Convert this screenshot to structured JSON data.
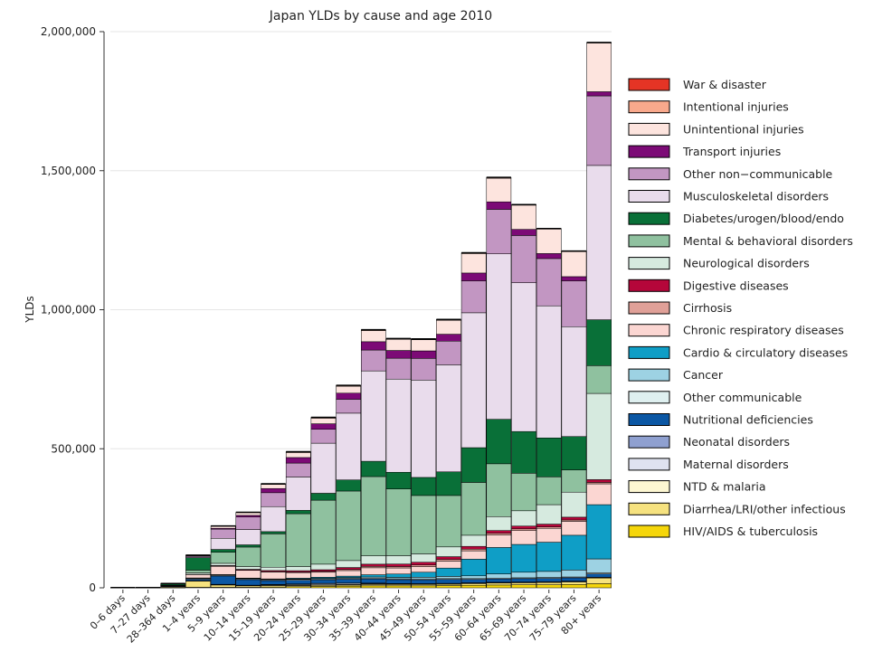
{
  "chart_data": {
    "type": "bar",
    "stacked": true,
    "title": "Japan YLDs by cause and age 2010",
    "xlabel": "",
    "ylabel": "YLDs",
    "ylim": [
      0,
      2000000
    ],
    "yticks": [
      0,
      500000,
      1000000,
      1500000,
      2000000
    ],
    "ytick_labels": [
      "0",
      "500,000",
      "1,000,000",
      "1,500,000",
      "2,000,000"
    ],
    "legend_position": "right",
    "grid": "horizontal",
    "categories": [
      "0–6 days",
      "7–27 days",
      "28–364 days",
      "1–4 years",
      "5–9 years",
      "10–14 years",
      "15–19 years",
      "20–24 years",
      "25–29 years",
      "30–34 years",
      "35–39 years",
      "40–44 years",
      "45–49 years",
      "50–54 years",
      "55–59 years",
      "60–64 years",
      "65–69 years",
      "70–74 years",
      "75–79 years",
      "80+ years"
    ],
    "series": [
      {
        "name": "HIV/AIDS & tuberculosis",
        "color": "#f5d60a",
        "values": [
          0,
          0,
          500,
          2000,
          2000,
          2000,
          3000,
          4000,
          5000,
          6000,
          7000,
          7000,
          7000,
          8000,
          9000,
          10000,
          11000,
          11000,
          12000,
          15000
        ]
      },
      {
        "name": "Diarrhea/LRI/other infectious",
        "color": "#f6e27f",
        "values": [
          300,
          300,
          3000,
          22000,
          8000,
          5000,
          5000,
          4000,
          4000,
          4000,
          5000,
          5000,
          5000,
          5000,
          6000,
          7000,
          7000,
          8000,
          9000,
          20000
        ]
      },
      {
        "name": "NTD & malaria",
        "color": "#fdf7d2",
        "values": [
          0,
          0,
          0,
          1000,
          1500,
          1500,
          2000,
          2000,
          2000,
          2000,
          2000,
          2000,
          2000,
          2000,
          2000,
          2000,
          2000,
          2000,
          2000,
          2000
        ]
      },
      {
        "name": "Maternal disorders",
        "color": "#dfe2f0",
        "values": [
          0,
          0,
          0,
          0,
          0,
          0,
          1000,
          3000,
          4000,
          4000,
          2000,
          500,
          0,
          0,
          0,
          0,
          0,
          0,
          0,
          0
        ]
      },
      {
        "name": "Neonatal disorders",
        "color": "#8fa0d0",
        "values": [
          500,
          500,
          1000,
          1000,
          1000,
          1000,
          1000,
          1000,
          1000,
          1000,
          1000,
          1000,
          1000,
          1000,
          1000,
          1000,
          1000,
          1000,
          1000,
          1000
        ]
      },
      {
        "name": "Nutritional deficiencies",
        "color": "#0b57a4",
        "values": [
          0,
          0,
          2000,
          5000,
          30000,
          20000,
          14000,
          13000,
          13000,
          14000,
          15000,
          14000,
          14000,
          14000,
          12000,
          12000,
          12000,
          12000,
          12000,
          12000
        ]
      },
      {
        "name": "Other communicable",
        "color": "#dff0f0",
        "values": [
          0,
          0,
          500,
          3000,
          3000,
          3000,
          3000,
          3000,
          3000,
          3000,
          3000,
          3000,
          3000,
          3000,
          3000,
          3000,
          3000,
          3000,
          3000,
          4000
        ]
      },
      {
        "name": "Cancer",
        "color": "#9dd2e3",
        "values": [
          0,
          0,
          0,
          1000,
          1000,
          1000,
          1000,
          1500,
          2000,
          3000,
          4000,
          5000,
          6000,
          8000,
          10000,
          15000,
          20000,
          22000,
          25000,
          50000
        ]
      },
      {
        "name": "Cardio & circulatory diseases",
        "color": "#0f9ec6",
        "values": [
          0,
          0,
          0,
          500,
          1000,
          1500,
          2000,
          3000,
          4000,
          5000,
          8000,
          12000,
          18000,
          30000,
          60000,
          95000,
          100000,
          105000,
          125000,
          195000
        ]
      },
      {
        "name": "Chronic respiratory diseases",
        "color": "#fbd6d2",
        "values": [
          0,
          0,
          1000,
          12000,
          30000,
          28000,
          25000,
          20000,
          18000,
          20000,
          25000,
          22000,
          20000,
          25000,
          30000,
          45000,
          50000,
          50000,
          50000,
          75000
        ]
      },
      {
        "name": "Cirrhosis",
        "color": "#e0a098",
        "values": [
          0,
          0,
          0,
          0,
          500,
          500,
          1000,
          2000,
          3000,
          4000,
          5000,
          5000,
          6000,
          6000,
          6000,
          6000,
          6000,
          5000,
          5000,
          5000
        ]
      },
      {
        "name": "Digestive diseases",
        "color": "#b5063a",
        "values": [
          0,
          0,
          0,
          1000,
          2000,
          3000,
          4000,
          5000,
          6000,
          7000,
          8000,
          9000,
          10000,
          10000,
          10000,
          10000,
          10000,
          10000,
          10000,
          10000
        ]
      },
      {
        "name": "Neurological disorders",
        "color": "#d6eadf",
        "values": [
          0,
          0,
          1000,
          5000,
          8000,
          10000,
          12000,
          15000,
          20000,
          25000,
          30000,
          30000,
          30000,
          35000,
          40000,
          50000,
          55000,
          70000,
          90000,
          310000
        ]
      },
      {
        "name": "Mental & behavioral disorders",
        "color": "#8fc19f",
        "values": [
          0,
          0,
          1000,
          10000,
          40000,
          70000,
          120000,
          190000,
          230000,
          250000,
          285000,
          240000,
          210000,
          185000,
          190000,
          190000,
          135000,
          100000,
          80000,
          100000
        ]
      },
      {
        "name": "Diabetes/urogen/blood/endo",
        "color": "#097038",
        "values": [
          0,
          0,
          5000,
          45000,
          10000,
          8000,
          8000,
          12000,
          25000,
          40000,
          55000,
          60000,
          65000,
          85000,
          125000,
          160000,
          150000,
          140000,
          120000,
          165000
        ]
      },
      {
        "name": "Musculoskeletal disorders",
        "color": "#e9dcec",
        "values": [
          0,
          0,
          0,
          0,
          40000,
          55000,
          90000,
          120000,
          180000,
          240000,
          325000,
          335000,
          350000,
          385000,
          485000,
          595000,
          535000,
          475000,
          395000,
          555000
        ]
      },
      {
        "name": "Other non−communicable",
        "color": "#c296c2",
        "values": [
          0,
          0,
          0,
          5000,
          33000,
          45000,
          50000,
          50000,
          50000,
          50000,
          75000,
          75000,
          78000,
          85000,
          115000,
          160000,
          170000,
          170000,
          165000,
          250000
        ]
      },
      {
        "name": "Transport injuries",
        "color": "#7c0a76",
        "values": [
          0,
          0,
          0,
          1000,
          3000,
          6000,
          15000,
          20000,
          20000,
          22000,
          30000,
          28000,
          27000,
          25000,
          28000,
          27000,
          22000,
          18000,
          15000,
          15000
        ]
      },
      {
        "name": "Unintentional injuries",
        "color": "#fde4de",
        "values": [
          0,
          0,
          500,
          3000,
          8000,
          10000,
          15000,
          18000,
          20000,
          25000,
          40000,
          40000,
          40000,
          50000,
          70000,
          85000,
          87000,
          88000,
          90000,
          175000
        ]
      },
      {
        "name": "Intentional injuries",
        "color": "#f9a98c",
        "values": [
          0,
          0,
          0,
          0,
          500,
          1000,
          2000,
          3000,
          3000,
          3000,
          3000,
          3000,
          3000,
          3000,
          3000,
          3000,
          2000,
          2000,
          2000,
          2000
        ]
      },
      {
        "name": "War & disaster",
        "color": "#e53425",
        "values": [
          0,
          0,
          0,
          0,
          0,
          0,
          0,
          0,
          0,
          0,
          0,
          0,
          0,
          0,
          0,
          0,
          0,
          0,
          0,
          0
        ]
      }
    ]
  }
}
